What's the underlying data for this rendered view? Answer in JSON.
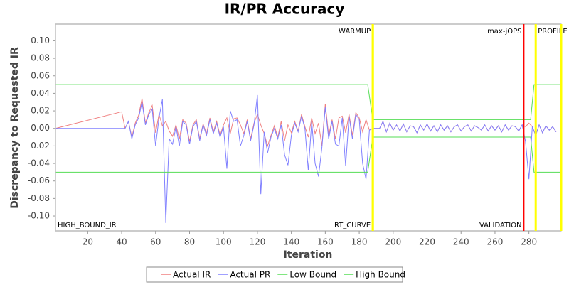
{
  "chart_data": {
    "type": "line",
    "title": "IR/PR Accuracy",
    "x_label": "Iteration",
    "y_label": "Discrepancy to Requested IR",
    "xlim": [
      1,
      299
    ],
    "ylim": [
      -0.117,
      0.119
    ],
    "xticks": [
      20,
      40,
      60,
      80,
      100,
      120,
      140,
      160,
      180,
      200,
      220,
      240,
      260,
      280
    ],
    "yticks": [
      {
        "value": -0.1,
        "label": "-0.10"
      },
      {
        "value": -0.08,
        "label": "-0.08"
      },
      {
        "value": -0.06,
        "label": "-0.06"
      },
      {
        "value": -0.04,
        "label": "-0.04"
      },
      {
        "value": -0.02,
        "label": "-0.02"
      },
      {
        "value": 0,
        "label": "0.00"
      },
      {
        "value": 0.02,
        "label": "0.02"
      },
      {
        "value": 0.04,
        "label": "0.04"
      },
      {
        "value": 0.06,
        "label": "0.06"
      },
      {
        "value": 0.08,
        "label": "0.08"
      },
      {
        "value": 0.1,
        "label": "0.10"
      }
    ],
    "grid": false,
    "legend": "bottom",
    "series": [
      {
        "name": "Actual IR",
        "color": "#f08080",
        "x": [
          1,
          40,
          42,
          44,
          46,
          48,
          50,
          52,
          54,
          56,
          58,
          60,
          62,
          64,
          66,
          68,
          70,
          72,
          74,
          76,
          78,
          80,
          82,
          84,
          86,
          88,
          90,
          92,
          94,
          96,
          98,
          100,
          102,
          104,
          106,
          108,
          110,
          112,
          114,
          116,
          118,
          120,
          122,
          124,
          126,
          128,
          130,
          132,
          134,
          136,
          138,
          140,
          142,
          144,
          146,
          148,
          150,
          152,
          154,
          156,
          158,
          160,
          162,
          164,
          166,
          168,
          170,
          172,
          174,
          176,
          178,
          180,
          182,
          184,
          186,
          188,
          190,
          192,
          194,
          196,
          198,
          200,
          202,
          204,
          206,
          208,
          210,
          212,
          214,
          216,
          218,
          220,
          222,
          224,
          226,
          228,
          230,
          232,
          234,
          236,
          238,
          240,
          242,
          244,
          246,
          248,
          250,
          252,
          254,
          256,
          258,
          260,
          262,
          264,
          266,
          268,
          270,
          272,
          274,
          276,
          278,
          280,
          282,
          284,
          286,
          288,
          290,
          292,
          294,
          296
        ],
        "values": [
          0,
          0.019,
          0,
          0.008,
          -0.01,
          0.006,
          0.015,
          0.034,
          0.006,
          0.018,
          0.026,
          -0.005,
          0.016,
          0.003,
          0.008,
          -0.003,
          -0.009,
          0.004,
          -0.012,
          0.01,
          0.006,
          -0.015,
          0.004,
          0.01,
          -0.012,
          0.005,
          -0.006,
          0.012,
          -0.004,
          0.008,
          -0.008,
          0.004,
          0.012,
          -0.006,
          0.011,
          0.012,
          0.004,
          -0.006,
          0.01,
          -0.012,
          0.006,
          0.016,
          0.004,
          -0.006,
          -0.02,
          -0.008,
          0.003,
          -0.01,
          0.008,
          -0.014,
          0.004,
          -0.005,
          0.008,
          -0.003,
          0.016,
          0.002,
          -0.01,
          0.012,
          -0.006,
          0.006,
          -0.02,
          0.028,
          -0.008,
          0.01,
          -0.012,
          0.012,
          0.014,
          -0.005,
          0.016,
          -0.008,
          0.018,
          0.012,
          -0.004,
          0.01,
          -0.002,
          0,
          0,
          0,
          0.008,
          -0.004,
          0.006,
          -0.002,
          0.004,
          -0.003,
          0.005,
          -0.004,
          0.003,
          0.002,
          -0.005,
          0.004,
          -0.002,
          0.005,
          -0.003,
          0.003,
          -0.004,
          0.004,
          -0.002,
          0.003,
          -0.004,
          0.002,
          0.004,
          -0.003,
          0.002,
          0.004,
          -0.003,
          0.003,
          0.001,
          -0.002,
          0.004,
          -0.003,
          0.003,
          -0.002,
          0.003,
          -0.004,
          0.004,
          -0.002,
          0.003,
          0.002,
          -0.003,
          0.004,
          0.002,
          0.006,
          0.002,
          -0.008,
          0.004,
          -0.005,
          0.003,
          -0.002,
          0.002,
          -0.004
        ]
      },
      {
        "name": "Actual PR",
        "color": "#8080ff",
        "x": [
          1,
          40,
          42,
          44,
          46,
          48,
          50,
          52,
          54,
          56,
          58,
          60,
          62,
          64,
          66,
          68,
          70,
          72,
          74,
          76,
          78,
          80,
          82,
          84,
          86,
          88,
          90,
          92,
          94,
          96,
          98,
          100,
          102,
          104,
          106,
          108,
          110,
          112,
          114,
          116,
          118,
          120,
          122,
          124,
          126,
          128,
          130,
          132,
          134,
          136,
          138,
          140,
          142,
          144,
          146,
          148,
          150,
          152,
          154,
          156,
          158,
          160,
          162,
          164,
          166,
          168,
          170,
          172,
          174,
          176,
          178,
          180,
          182,
          184,
          186,
          188,
          190,
          192,
          194,
          196,
          198,
          200,
          202,
          204,
          206,
          208,
          210,
          212,
          214,
          216,
          218,
          220,
          222,
          224,
          226,
          228,
          230,
          232,
          234,
          236,
          238,
          240,
          242,
          244,
          246,
          248,
          250,
          252,
          254,
          256,
          258,
          260,
          262,
          264,
          266,
          268,
          270,
          272,
          274,
          276,
          278,
          280,
          282,
          284,
          286,
          288,
          290,
          292,
          294,
          296
        ],
        "values": [
          0,
          0,
          0,
          0.008,
          -0.012,
          0.004,
          0.012,
          0.03,
          0.004,
          0.016,
          0.022,
          -0.02,
          0.012,
          0.033,
          -0.108,
          -0.012,
          -0.018,
          0.002,
          -0.02,
          0.008,
          0.004,
          -0.018,
          0.002,
          0.008,
          -0.014,
          0.004,
          -0.008,
          0.01,
          -0.006,
          0.006,
          -0.01,
          0.002,
          -0.046,
          0.02,
          0.008,
          0.01,
          -0.02,
          -0.008,
          0.008,
          -0.014,
          0.004,
          0.038,
          -0.075,
          -0.004,
          -0.028,
          -0.01,
          0,
          -0.012,
          0.004,
          -0.03,
          -0.042,
          -0.008,
          0.006,
          -0.004,
          0.014,
          0,
          -0.048,
          0.008,
          -0.04,
          -0.055,
          -0.022,
          0.024,
          -0.012,
          0.008,
          -0.018,
          -0.02,
          0.012,
          -0.043,
          0.014,
          -0.012,
          0.016,
          0.01,
          -0.04,
          -0.058,
          -0.002,
          0,
          0,
          0,
          0.008,
          -0.004,
          0.006,
          -0.002,
          0.004,
          -0.003,
          0.005,
          -0.004,
          0.003,
          0.002,
          -0.005,
          0.004,
          -0.002,
          0.005,
          -0.003,
          0.003,
          -0.004,
          0.004,
          -0.002,
          0.003,
          -0.004,
          0.002,
          0.004,
          -0.003,
          0.002,
          0.004,
          -0.003,
          0.003,
          0.001,
          -0.002,
          0.004,
          -0.003,
          0.003,
          -0.002,
          0.003,
          -0.004,
          0.004,
          -0.002,
          0.003,
          0.002,
          -0.003,
          0.004,
          -0.015,
          -0.058,
          0.002,
          -0.008,
          0.004,
          -0.005,
          0.003,
          -0.002,
          0.002,
          -0.004
        ]
      },
      {
        "name": "Low Bound",
        "color": "#55dd55",
        "x": [
          1,
          185,
          188,
          281,
          283,
          299
        ],
        "values": [
          -0.05,
          -0.05,
          -0.01,
          -0.01,
          -0.05,
          -0.05
        ]
      },
      {
        "name": "High Bound",
        "color": "#55dd55",
        "x": [
          1,
          185,
          188,
          281,
          283,
          299
        ],
        "values": [
          0.05,
          0.05,
          0.01,
          0.01,
          0.05,
          0.05
        ]
      }
    ],
    "markers": [
      {
        "x": 1,
        "color": "#c0c0c0",
        "label": "HIGH_BOUND_IR",
        "label_position": "bottom-right"
      },
      {
        "x": 188,
        "color": "#ffff00",
        "label": "WARMUP",
        "label_position": "top-left"
      },
      {
        "x": 188,
        "color": "#ffff00",
        "label": "RT_CURVE",
        "label_position": "bottom-left"
      },
      {
        "x": 277,
        "color": "#ff0000",
        "label": "max-jOPS",
        "label_position": "top-left"
      },
      {
        "x": 277,
        "color": "#ff0000",
        "label": "VALIDATION",
        "label_position": "bottom-left"
      },
      {
        "x": 284,
        "color": "#ffff00",
        "label": "PROFILE",
        "label_position": "top-right"
      },
      {
        "x": 299,
        "color": "#ffff00"
      }
    ]
  }
}
